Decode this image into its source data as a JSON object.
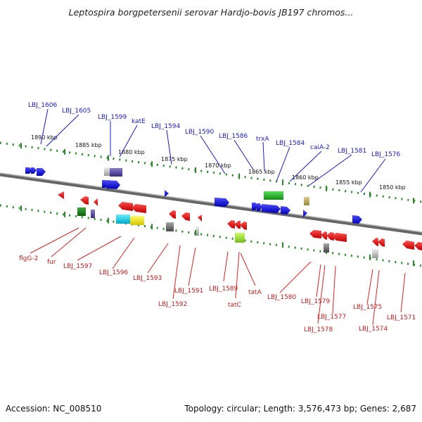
{
  "title": "Leptospira borgpetersenii serovar Hardjo-bovis JB197 chromos...",
  "footer": {
    "accession": "Accession: NC_008510",
    "topology": "Topology: circular; Length: 3,576,473 bp; Genes: 2,687"
  },
  "scale_ticks": [
    "1890 kbp",
    "1885 kbp",
    "1880 kbp",
    "1875 kbp",
    "1870 kbp",
    "1865 kbp",
    "1860 kbp",
    "1855 kbp",
    "1850 kbp"
  ],
  "forward_gene_labels": [
    "LBJ_1606",
    "LBJ_1605",
    "LBJ_1599",
    "katE",
    "LBJ_1594",
    "LBJ_1590",
    "LBJ_1586",
    "trxA",
    "LBJ_1584",
    "caiA-2",
    "LBJ_1581",
    "LBJ_1576"
  ],
  "reverse_gene_labels": [
    "flgG-2",
    "fur",
    "LBJ_1597",
    "LBJ_1596",
    "LBJ_1593",
    "LBJ_1592",
    "LBJ_1591",
    "LBJ_1589",
    "tatC",
    "tatA",
    "LBJ_1580",
    "LBJ_1579",
    "LBJ_1578",
    "LBJ_1577",
    "LBJ_1575",
    "LBJ_1574",
    "LBJ_1571"
  ],
  "colors": {
    "forward_label": "#1a1acc",
    "reverse_label": "#cc1a1a",
    "backbone": "#8c8c8c",
    "scale_dots": "#2a8a2a"
  }
}
